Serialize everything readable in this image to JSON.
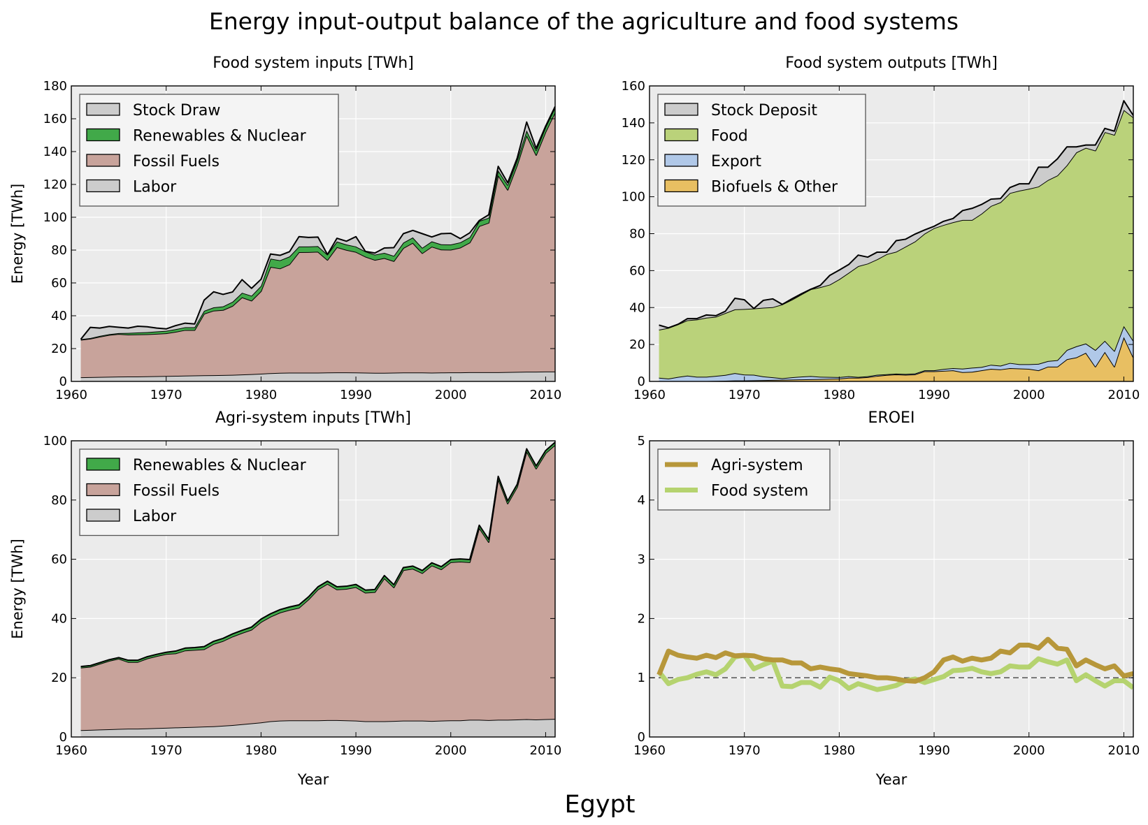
{
  "figure": {
    "title": "Energy input-output balance of the agriculture and food systems",
    "footer": "Egypt"
  },
  "chart_data": [
    {
      "id": "food_inputs",
      "type": "area",
      "stacked": true,
      "title": "Food system inputs [TWh]",
      "xlabel": "",
      "ylabel": "Energy [TWh]",
      "xlim": [
        1960,
        2011
      ],
      "ylim": [
        0,
        180
      ],
      "xticks": [
        1960,
        1970,
        1980,
        1990,
        2000,
        2010
      ],
      "yticks": [
        0,
        20,
        40,
        60,
        80,
        100,
        120,
        140,
        160,
        180
      ],
      "grid": true,
      "legend_position": "top-left",
      "x": [
        1961,
        1962,
        1963,
        1964,
        1965,
        1966,
        1967,
        1968,
        1969,
        1970,
        1971,
        1972,
        1973,
        1974,
        1975,
        1976,
        1977,
        1978,
        1979,
        1980,
        1981,
        1982,
        1983,
        1984,
        1985,
        1986,
        1987,
        1988,
        1989,
        1990,
        1991,
        1992,
        1993,
        1994,
        1995,
        1996,
        1997,
        1998,
        1999,
        2000,
        2001,
        2002,
        2003,
        2004,
        2005,
        2006,
        2007,
        2008,
        2009,
        2010,
        2011
      ],
      "series": [
        {
          "name": "Labor",
          "color": "#cccccc",
          "values": [
            2.5,
            2.6,
            2.7,
            2.8,
            2.9,
            3.0,
            3.0,
            3.1,
            3.2,
            3.3,
            3.4,
            3.5,
            3.6,
            3.7,
            3.8,
            3.9,
            4.0,
            4.2,
            4.4,
            4.7,
            5.0,
            5.2,
            5.3,
            5.3,
            5.3,
            5.3,
            5.4,
            5.5,
            5.5,
            5.4,
            5.3,
            5.2,
            5.2,
            5.3,
            5.4,
            5.4,
            5.4,
            5.3,
            5.4,
            5.5,
            5.5,
            5.6,
            5.6,
            5.6,
            5.6,
            5.7,
            5.8,
            5.9,
            5.9,
            6.0,
            6.0
          ]
        },
        {
          "name": "Fossil Fuels",
          "color": "#c8a39b",
          "values": [
            22.8,
            23.4,
            24.5,
            25.5,
            26.0,
            25.5,
            25.6,
            25.6,
            25.8,
            26.0,
            26.8,
            27.8,
            27.7,
            37.5,
            39.3,
            39.6,
            42.0,
            47.0,
            44.8,
            50.3,
            64.8,
            63.6,
            66.0,
            73.4,
            73.5,
            73.7,
            68.6,
            76.3,
            74.6,
            73.5,
            70.7,
            68.8,
            69.9,
            68.0,
            75.8,
            79.0,
            72.7,
            76.8,
            74.9,
            74.7,
            76.0,
            79.0,
            89.0,
            91.0,
            120.0,
            111.0,
            126.0,
            144.0,
            132.0,
            146.0,
            158.0
          ]
        },
        {
          "name": "Renewables & Nuclear",
          "color": "#41a949",
          "values": [
            0.4,
            0.4,
            0.5,
            0.5,
            0.5,
            1.0,
            1.2,
            1.3,
            1.4,
            1.5,
            1.6,
            1.7,
            1.7,
            1.8,
            2.0,
            2.2,
            2.5,
            2.8,
            3.0,
            3.2,
            5.0,
            5.0,
            4.8,
            3.5,
            3.4,
            3.4,
            3.3,
            3.4,
            3.3,
            3.3,
            3.2,
            3.2,
            3.2,
            3.2,
            3.3,
            3.3,
            3.3,
            3.2,
            3.2,
            3.2,
            3.2,
            3.2,
            3.1,
            3.1,
            3.0,
            3.0,
            3.0,
            3.0,
            3.0,
            3.0,
            3.0
          ]
        },
        {
          "name": "Stock Draw",
          "color": "#cccccc",
          "values": [
            0.0,
            6.5,
            4.8,
            4.7,
            3.6,
            3.0,
            3.8,
            3.3,
            2.1,
            1.2,
            2.2,
            2.5,
            2.0,
            6.5,
            9.5,
            7.3,
            6.0,
            8.0,
            4.5,
            4.0,
            2.8,
            3.0,
            2.9,
            6.0,
            5.5,
            5.5,
            0.0,
            2.0,
            2.0,
            6.0,
            0.0,
            1.0,
            3.0,
            5.0,
            5.5,
            4.3,
            8.6,
            2.7,
            6.5,
            6.8,
            2.3,
            2.7,
            0.3,
            1.8,
            2.4,
            1.3,
            1.2,
            5.1,
            1.1,
            0.5,
            0.5
          ]
        }
      ]
    },
    {
      "id": "food_outputs",
      "type": "area",
      "stacked": true,
      "title": "Food system outputs [TWh]",
      "xlabel": "",
      "ylabel": "",
      "xlim": [
        1960,
        2011
      ],
      "ylim": [
        0,
        160
      ],
      "xticks": [
        1960,
        1970,
        1980,
        1990,
        2000,
        2010
      ],
      "yticks": [
        0,
        20,
        40,
        60,
        80,
        100,
        120,
        140,
        160
      ],
      "grid": true,
      "legend_position": "top-left",
      "x": [
        1961,
        1962,
        1963,
        1964,
        1965,
        1966,
        1967,
        1968,
        1969,
        1970,
        1971,
        1972,
        1973,
        1974,
        1975,
        1976,
        1977,
        1978,
        1979,
        1980,
        1981,
        1982,
        1983,
        1984,
        1985,
        1986,
        1987,
        1988,
        1989,
        1990,
        1991,
        1992,
        1993,
        1994,
        1995,
        1996,
        1997,
        1998,
        1999,
        2000,
        2001,
        2002,
        2003,
        2004,
        2005,
        2006,
        2007,
        2008,
        2009,
        2010,
        2011
      ],
      "series": [
        {
          "name": "Biofuels & Other",
          "color": "#e8bf62",
          "values": [
            0.0,
            0.0,
            0.1,
            0.1,
            0.2,
            0.2,
            0.3,
            0.4,
            0.5,
            0.5,
            0.6,
            0.7,
            0.8,
            0.9,
            1.0,
            1.1,
            1.2,
            1.3,
            1.4,
            1.5,
            2.0,
            2.0,
            2.3,
            3.0,
            3.5,
            3.8,
            3.6,
            3.8,
            5.5,
            5.5,
            5.7,
            6.0,
            5.0,
            5.2,
            6.0,
            6.8,
            6.5,
            7.2,
            7.0,
            6.8,
            6.0,
            8.0,
            8.0,
            12.0,
            13.0,
            15.5,
            8.0,
            16.0,
            8.0,
            24.0,
            13.0
          ]
        },
        {
          "name": "Export",
          "color": "#b0c8e8",
          "values": [
            2.0,
            1.5,
            2.3,
            3.0,
            2.3,
            2.3,
            2.7,
            3.1,
            4.0,
            3.2,
            3.0,
            2.0,
            1.4,
            0.8,
            1.2,
            1.5,
            1.7,
            1.2,
            1.0,
            0.8,
            0.8,
            0.4,
            0.5,
            0.6,
            0.4,
            0.4,
            0.4,
            0.5,
            0.5,
            0.5,
            1.0,
            1.2,
            1.9,
            2.2,
            1.8,
            2.2,
            2.0,
            2.8,
            2.3,
            2.5,
            3.5,
            3.0,
            3.5,
            5.0,
            6.0,
            5.0,
            9.0,
            6.0,
            8.5,
            6.0,
            9.0
          ]
        },
        {
          "name": "Food",
          "color": "#bad27a",
          "values": [
            26.0,
            27.5,
            28.5,
            30.0,
            31.0,
            32.0,
            32.0,
            33.5,
            34.5,
            35.5,
            35.9,
            37.2,
            38.0,
            40.0,
            42.0,
            44.5,
            47.0,
            48.5,
            50.0,
            53.0,
            56.0,
            60.0,
            61.0,
            62.5,
            65.0,
            66.0,
            69.0,
            71.5,
            74.0,
            77.0,
            78.0,
            79.0,
            80.5,
            80.0,
            83.0,
            86.0,
            88.5,
            92.0,
            94.0,
            95.0,
            96.0,
            98.0,
            100.0,
            100.0,
            105.0,
            106.0,
            108.0,
            113.0,
            117.0,
            117.0,
            121.0
          ]
        },
        {
          "name": "Stock Deposit",
          "color": "#cccccc",
          "values": [
            2.5,
            0.0,
            0.0,
            0.9,
            0.5,
            1.5,
            0.6,
            1.0,
            6.0,
            5.0,
            0.0,
            4.0,
            4.5,
            0.0,
            0.5,
            0.3,
            0.0,
            1.0,
            5.0,
            5.0,
            4.5,
            6.0,
            3.5,
            3.9,
            1.1,
            6.0,
            4.0,
            4.0,
            2.0,
            1.0,
            2.0,
            2.0,
            5.1,
            6.3,
            5.0,
            3.7,
            2.0,
            3.0,
            3.7,
            2.7,
            10.5,
            7.0,
            9.0,
            10.0,
            3.0,
            1.5,
            3.0,
            2.0,
            2.0,
            5.0,
            1.0
          ]
        }
      ]
    },
    {
      "id": "agri_inputs",
      "type": "area",
      "stacked": true,
      "title": "Agri-system inputs [TWh]",
      "xlabel": "Year",
      "ylabel": "Energy [TWh]",
      "xlim": [
        1960,
        2011
      ],
      "ylim": [
        0,
        100
      ],
      "xticks": [
        1960,
        1970,
        1980,
        1990,
        2000,
        2010
      ],
      "yticks": [
        0,
        20,
        40,
        60,
        80,
        100
      ],
      "grid": true,
      "legend_position": "top-left",
      "x": [
        1961,
        1962,
        1963,
        1964,
        1965,
        1966,
        1967,
        1968,
        1969,
        1970,
        1971,
        1972,
        1973,
        1974,
        1975,
        1976,
        1977,
        1978,
        1979,
        1980,
        1981,
        1982,
        1983,
        1984,
        1985,
        1986,
        1987,
        1988,
        1989,
        1990,
        1991,
        1992,
        1993,
        1994,
        1995,
        1996,
        1997,
        1998,
        1999,
        2000,
        2001,
        2002,
        2003,
        2004,
        2005,
        2006,
        2007,
        2008,
        2009,
        2010,
        2011
      ],
      "series": [
        {
          "name": "Labor",
          "color": "#cccccc",
          "values": [
            2.3,
            2.4,
            2.5,
            2.6,
            2.7,
            2.8,
            2.8,
            2.9,
            3.0,
            3.1,
            3.2,
            3.3,
            3.4,
            3.5,
            3.6,
            3.8,
            4.0,
            4.3,
            4.6,
            4.9,
            5.3,
            5.5,
            5.6,
            5.6,
            5.6,
            5.6,
            5.7,
            5.7,
            5.6,
            5.5,
            5.3,
            5.3,
            5.3,
            5.4,
            5.5,
            5.5,
            5.5,
            5.4,
            5.5,
            5.6,
            5.6,
            5.8,
            5.8,
            5.7,
            5.8,
            5.8,
            5.9,
            6.0,
            5.9,
            6.0,
            6.1
          ]
        },
        {
          "name": "Fossil Fuels",
          "color": "#c8a39b",
          "values": [
            21.1,
            21.3,
            22.2,
            23.1,
            23.7,
            22.5,
            22.5,
            23.6,
            24.3,
            24.9,
            25.0,
            25.9,
            26.0,
            26.1,
            27.8,
            28.6,
            29.9,
            30.8,
            31.6,
            33.9,
            35.3,
            36.5,
            37.3,
            38.0,
            40.8,
            44.2,
            46.0,
            44.1,
            44.4,
            45.1,
            43.4,
            43.6,
            48.3,
            45.1,
            50.8,
            51.3,
            49.8,
            52.5,
            51.1,
            53.4,
            53.6,
            53.2,
            64.8,
            60.1,
            81.3,
            73.0,
            78.5,
            90.4,
            84.7,
            89.8,
            92.5
          ]
        },
        {
          "name": "Renewables & Nuclear",
          "color": "#41a949",
          "values": [
            0.4,
            0.4,
            0.4,
            0.4,
            0.4,
            0.6,
            0.6,
            0.6,
            0.6,
            0.6,
            0.8,
            0.8,
            0.8,
            0.9,
            0.9,
            0.9,
            0.9,
            0.9,
            0.9,
            1.0,
            1.0,
            1.0,
            1.0,
            1.0,
            0.9,
            0.9,
            0.9,
            0.9,
            0.9,
            0.9,
            0.9,
            0.9,
            0.9,
            0.9,
            0.9,
            0.9,
            0.9,
            0.9,
            0.9,
            0.9,
            0.9,
            0.9,
            0.9,
            0.9,
            0.9,
            0.9,
            0.9,
            0.9,
            0.9,
            0.9,
            0.9
          ]
        }
      ]
    },
    {
      "id": "eroei",
      "type": "line",
      "title": "EROEI",
      "xlabel": "Year",
      "ylabel": "",
      "xlim": [
        1960,
        2011
      ],
      "ylim": [
        0,
        5
      ],
      "xticks": [
        1960,
        1970,
        1980,
        1990,
        2000,
        2010
      ],
      "yticks": [
        0,
        1,
        2,
        3,
        4,
        5
      ],
      "grid": true,
      "reference_line": 1,
      "legend_position": "top-left",
      "x": [
        1961,
        1962,
        1963,
        1964,
        1965,
        1966,
        1967,
        1968,
        1969,
        1970,
        1971,
        1972,
        1973,
        1974,
        1975,
        1976,
        1977,
        1978,
        1979,
        1980,
        1981,
        1982,
        1983,
        1984,
        1985,
        1986,
        1987,
        1988,
        1989,
        1990,
        1991,
        1992,
        1993,
        1994,
        1995,
        1996,
        1997,
        1998,
        1999,
        2000,
        2001,
        2002,
        2003,
        2004,
        2005,
        2006,
        2007,
        2008,
        2009,
        2010,
        2011
      ],
      "series": [
        {
          "name": "Food system",
          "color": "#b5d36f",
          "values": [
            1.1,
            0.9,
            0.97,
            1.0,
            1.06,
            1.1,
            1.05,
            1.15,
            1.35,
            1.38,
            1.15,
            1.22,
            1.28,
            0.86,
            0.85,
            0.92,
            0.92,
            0.84,
            1.01,
            0.95,
            0.82,
            0.9,
            0.85,
            0.8,
            0.83,
            0.87,
            0.95,
            0.98,
            0.92,
            0.97,
            1.02,
            1.12,
            1.13,
            1.16,
            1.1,
            1.07,
            1.1,
            1.2,
            1.18,
            1.18,
            1.32,
            1.27,
            1.23,
            1.3,
            0.95,
            1.05,
            0.95,
            0.86,
            0.95,
            0.95,
            0.83
          ]
        },
        {
          "name": "Agri-system",
          "color": "#b7973a",
          "values": [
            1.05,
            1.45,
            1.38,
            1.35,
            1.33,
            1.38,
            1.34,
            1.42,
            1.37,
            1.38,
            1.37,
            1.32,
            1.3,
            1.3,
            1.25,
            1.25,
            1.15,
            1.18,
            1.15,
            1.13,
            1.07,
            1.05,
            1.03,
            1.0,
            1.0,
            0.98,
            0.95,
            0.94,
            1.0,
            1.1,
            1.3,
            1.35,
            1.28,
            1.33,
            1.3,
            1.33,
            1.45,
            1.42,
            1.55,
            1.55,
            1.5,
            1.65,
            1.5,
            1.48,
            1.2,
            1.3,
            1.22,
            1.15,
            1.2,
            1.03,
            1.07
          ]
        }
      ]
    }
  ]
}
